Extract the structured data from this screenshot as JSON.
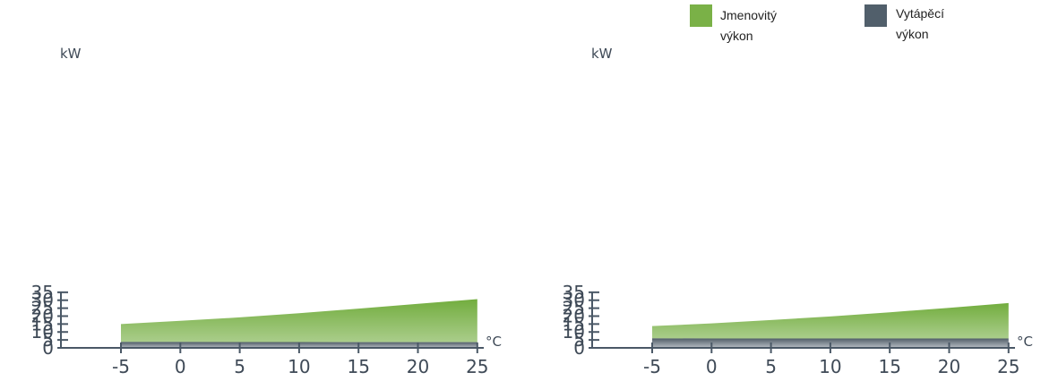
{
  "legend": [
    {
      "label_lines": [
        "Jmenovitý",
        "výkon"
      ],
      "color": "#7ab147"
    },
    {
      "label_lines": [
        "Vytápěcí",
        "výkon"
      ],
      "color": "#515f6b"
    }
  ],
  "colors": {
    "axis": "#4a5866",
    "text": "#3f4a57",
    "green_top": "#72ad3e",
    "green_bottom": "#aacd8b",
    "gray_top": "#4f5c67",
    "gray_bottom": "#b7bdc3"
  },
  "chart_data": [
    {
      "type": "area",
      "ylabel": "kW",
      "xunit": "°C",
      "x": [
        -5,
        0,
        5,
        10,
        15,
        20,
        25
      ],
      "xlim": [
        -10,
        25
      ],
      "ylim": [
        0,
        35
      ],
      "yticks": [
        0,
        5,
        10,
        15,
        20,
        25,
        30,
        35
      ],
      "series": [
        {
          "name": "Jmenovitý výkon",
          "values": [
            15.0,
            17.0,
            19.2,
            21.8,
            24.7,
            27.7,
            30.7
          ]
        },
        {
          "name": "Vytápěcí výkon",
          "values": [
            3.7,
            3.7,
            3.65,
            3.65,
            3.6,
            3.6,
            3.6
          ]
        }
      ]
    },
    {
      "type": "area",
      "ylabel": "kW",
      "xunit": "°C",
      "x": [
        -5,
        0,
        5,
        10,
        15,
        20,
        25
      ],
      "xlim": [
        -10,
        25
      ],
      "ylim": [
        0,
        35
      ],
      "yticks": [
        0,
        5,
        10,
        15,
        20,
        25,
        30,
        35
      ],
      "series": [
        {
          "name": "Jmenovitý výkon",
          "values": [
            13.7,
            15.4,
            17.5,
            19.8,
            22.4,
            25.2,
            28.2
          ]
        },
        {
          "name": "Vytápěcí výkon",
          "values": [
            6.0,
            5.9,
            5.9,
            5.9,
            5.9,
            5.9,
            5.9
          ]
        }
      ]
    }
  ]
}
